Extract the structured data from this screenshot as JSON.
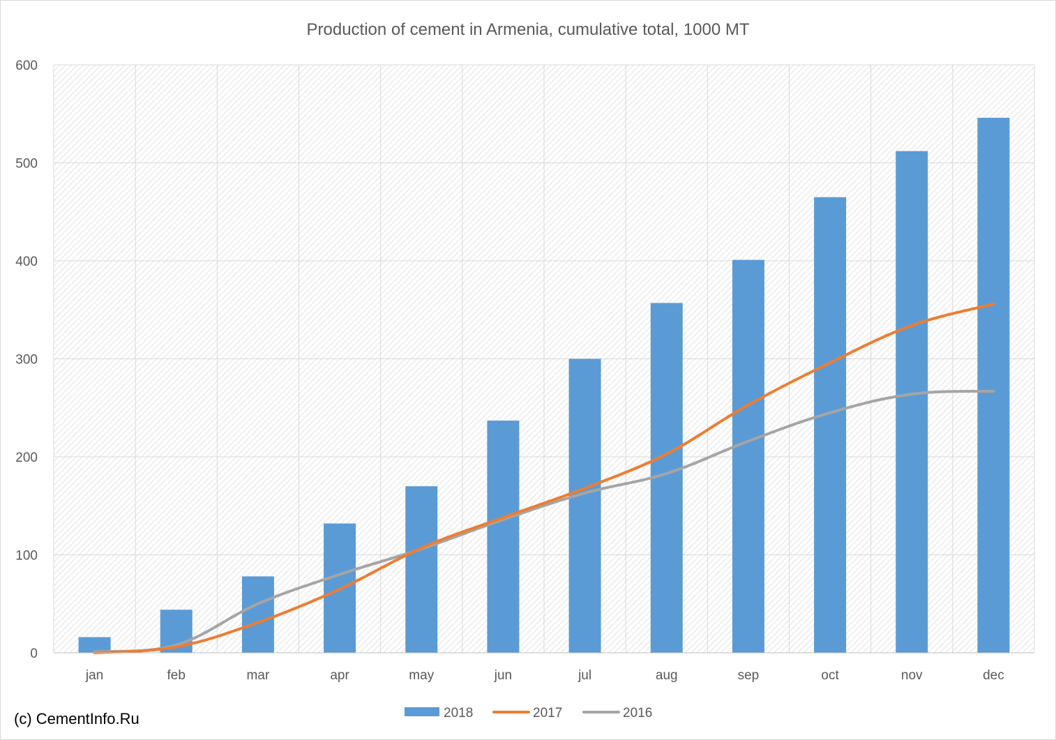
{
  "chart_data": {
    "type": "bar",
    "title": "Production of cement in Armenia, cumulative total, 1000 MT",
    "xlabel": "",
    "ylabel": "",
    "ylim": [
      0,
      600
    ],
    "yticks": [
      0,
      100,
      200,
      300,
      400,
      500,
      600
    ],
    "categories": [
      "jan",
      "feb",
      "mar",
      "apr",
      "may",
      "jun",
      "jul",
      "aug",
      "sep",
      "oct",
      "nov",
      "dec"
    ],
    "series": [
      {
        "name": "2018",
        "kind": "bar",
        "color": "#5b9bd5",
        "values": [
          16,
          44,
          78,
          132,
          170,
          237,
          300,
          357,
          401,
          465,
          512,
          546
        ]
      },
      {
        "name": "2017",
        "kind": "line",
        "color": "#ed7d31",
        "values": [
          0,
          6,
          31,
          65,
          107,
          138,
          168,
          203,
          253,
          296,
          334,
          356
        ]
      },
      {
        "name": "2016",
        "kind": "line",
        "color": "#a5a5a5",
        "values": [
          1,
          8,
          50,
          80,
          106,
          136,
          163,
          183,
          216,
          245,
          264,
          267
        ]
      }
    ],
    "grid": true,
    "legend_position": "bottom"
  },
  "copyright": "(c) CementInfo.Ru"
}
